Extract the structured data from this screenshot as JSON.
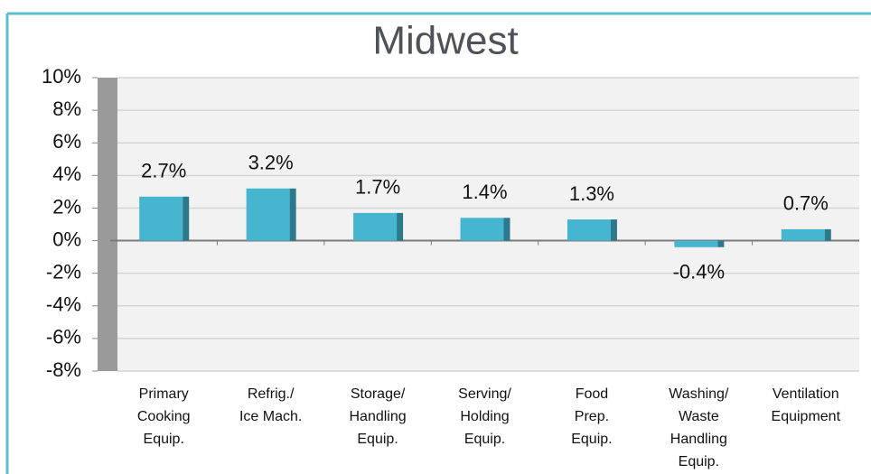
{
  "chart_data": {
    "type": "bar",
    "title": "Midwest",
    "categories": [
      "Primary\nCooking\nEquip.",
      "Refrig./\nIce Mach.",
      "Storage/\nHandling\nEquip.",
      "Serving/\nHolding\nEquip.",
      "Food\nPrep.\nEquip.",
      "Washing/\nWaste\nHandling\nEquip.",
      "Ventilation\nEquipment"
    ],
    "values": [
      2.7,
      3.2,
      1.7,
      1.4,
      1.3,
      -0.4,
      0.7
    ],
    "value_labels": [
      "2.7%",
      "3.2%",
      "1.7%",
      "1.4%",
      "1.3%",
      "-0.4%",
      "0.7%"
    ],
    "color": "#45b5d0",
    "ylim": [
      -8,
      10
    ],
    "yticks": [
      {
        "value": -8,
        "label": "-8%"
      },
      {
        "value": -6,
        "label": "-6%"
      },
      {
        "value": -4,
        "label": "-4%"
      },
      {
        "value": -2,
        "label": "-2%"
      },
      {
        "value": 0,
        "label": "0%"
      },
      {
        "value": 2,
        "label": "2%"
      },
      {
        "value": 4,
        "label": "4%"
      },
      {
        "value": 6,
        "label": "6%"
      },
      {
        "value": 8,
        "label": "8%"
      },
      {
        "value": 10,
        "label": "10%"
      }
    ],
    "grid": true
  }
}
